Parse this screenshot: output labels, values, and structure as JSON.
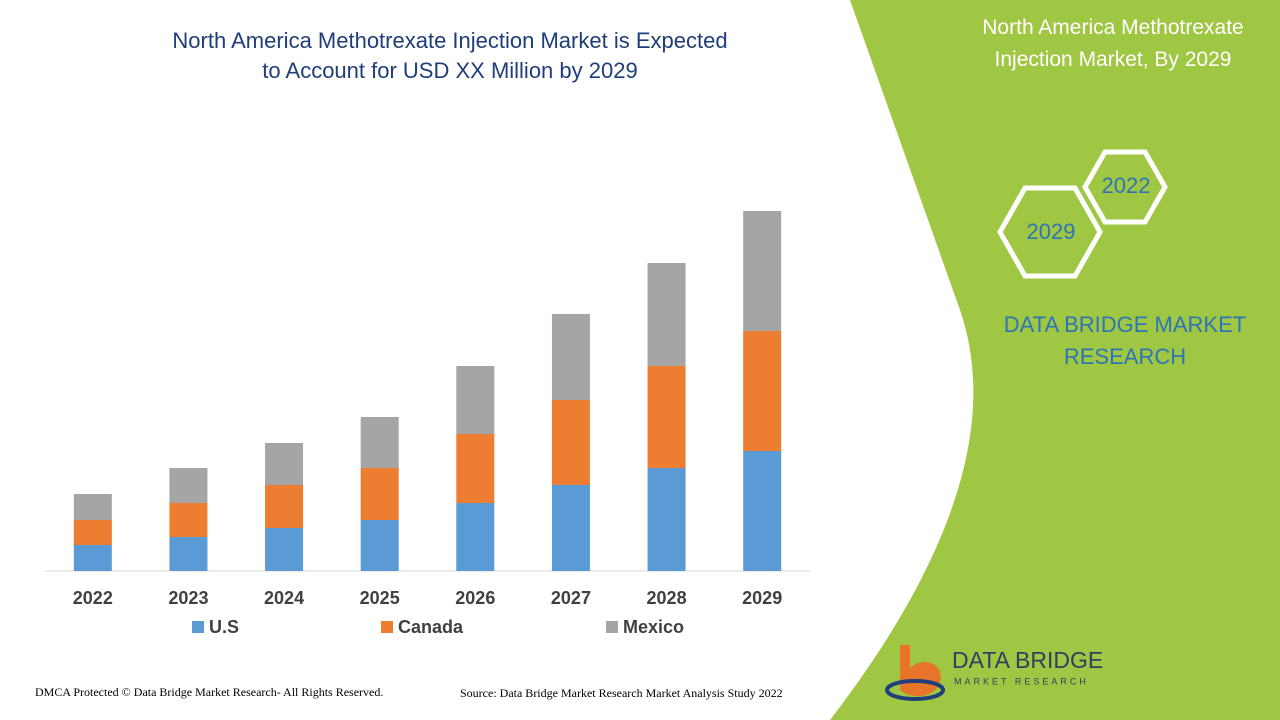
{
  "chart_data": {
    "type": "stacked-bar",
    "title": "North America Methotrexate Injection Market is Expected to Account for USD XX Million by 2029",
    "categories": [
      "2022",
      "2023",
      "2024",
      "2025",
      "2026",
      "2027",
      "2028",
      "2029"
    ],
    "series": [
      {
        "name": "U.S",
        "color": "#5b9bd5",
        "values": [
          26,
          34,
          43,
          51,
          68,
          86,
          103,
          120
        ]
      },
      {
        "name": "Canada",
        "color": "#ed7d31",
        "values": [
          25,
          34,
          43,
          52,
          69,
          85,
          102,
          120
        ]
      },
      {
        "name": "Mexico",
        "color": "#a5a5a5",
        "values": [
          26,
          35,
          42,
          51,
          68,
          86,
          103,
          120
        ]
      }
    ],
    "ylim": [
      0,
      380
    ]
  },
  "panel": {
    "title": "North America Methotrexate Injection Market, By 2029",
    "hex_years": [
      "2022",
      "2029"
    ],
    "brand": "DATA BRIDGE MARKET RESEARCH",
    "logo_name": "DATA BRIDGE",
    "logo_sub": "MARKET RESEARCH"
  },
  "footer": {
    "left": "DMCA Protected © Data Bridge Market Research- All Rights Reserved.",
    "right": "Source: Data Bridge Market Research Market Analysis Study 2022"
  }
}
